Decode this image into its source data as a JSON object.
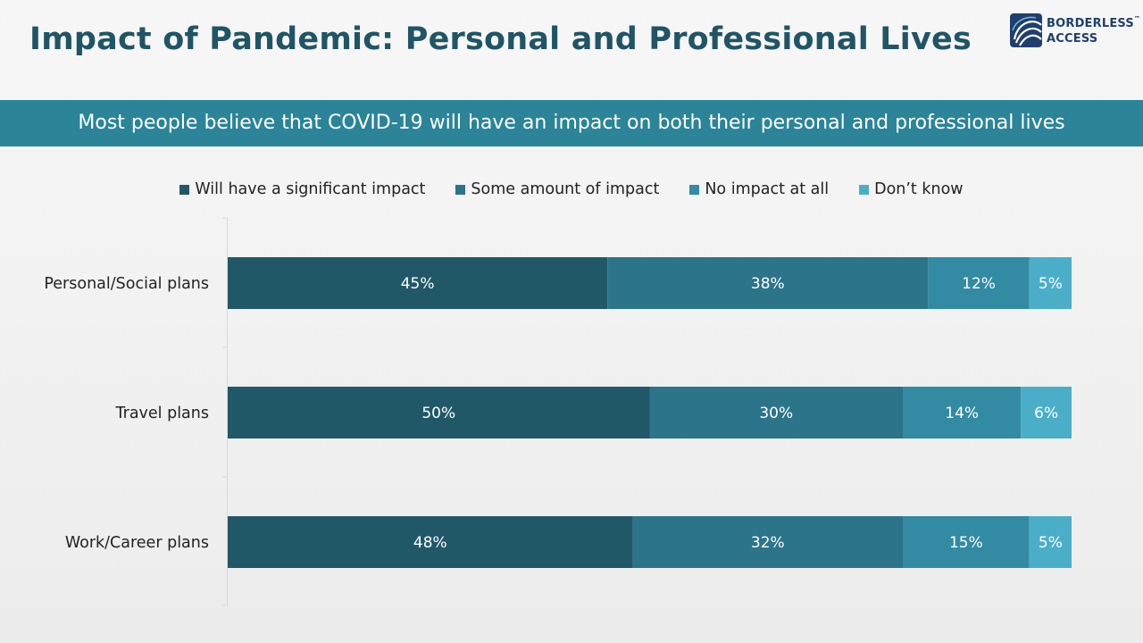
{
  "title": "Impact of Pandemic: Personal and Professional Lives",
  "banner": "Most people believe that COVID-19 will have an impact on both their personal and professional lives",
  "logo": {
    "line1": "BORDERLESS",
    "tm": "™",
    "line2": "ACCESS",
    "color": "#1f3f6e"
  },
  "colors": {
    "title": "#1f5566",
    "banner": "#2b8498"
  },
  "chart_data": {
    "type": "bar",
    "orientation": "horizontal",
    "stacked": true,
    "categories": [
      "Personal/Social plans",
      "Travel plans",
      "Work/Career plans"
    ],
    "series": [
      {
        "name": "Will have a significant impact",
        "color": "#215868",
        "values": [
          45,
          50,
          48
        ],
        "labels": [
          "45%",
          "50%",
          "48%"
        ]
      },
      {
        "name": "Some amount of impact",
        "color": "#2b7489",
        "values": [
          38,
          30,
          32
        ],
        "labels": [
          "38%",
          "30%",
          "32%"
        ]
      },
      {
        "name": "No impact at all",
        "color": "#328ba2",
        "values": [
          12,
          14,
          15
        ],
        "labels": [
          "12%",
          "14%",
          "15%"
        ]
      },
      {
        "name": "Don’t know",
        "color": "#4baec9",
        "values": [
          5,
          6,
          5
        ],
        "labels": [
          "5%",
          "6%",
          "5%"
        ]
      }
    ],
    "xlim": [
      0,
      100
    ],
    "legend_position": "top",
    "grid": false
  }
}
